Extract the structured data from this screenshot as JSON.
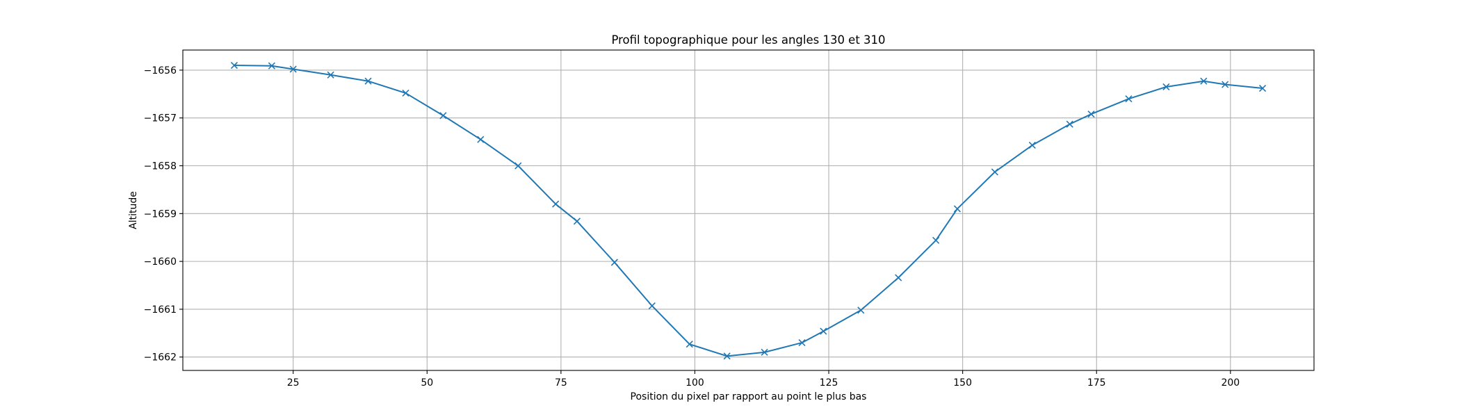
{
  "chart_data": {
    "type": "line",
    "title": "Profil topographique pour les angles 130 et 310",
    "xlabel": "Position du pixel par rapport au point le plus bas",
    "ylabel": "Altitude",
    "xlim": [
      4.4,
      215.6
    ],
    "ylim": [
      -1662.28,
      -1655.58
    ],
    "xticks": [
      25,
      50,
      75,
      100,
      125,
      150,
      175,
      200
    ],
    "yticks": [
      -1656,
      -1657,
      -1658,
      -1659,
      -1660,
      -1661,
      -1662
    ],
    "ytick_labels": [
      "−1656",
      "−1657",
      "−1658",
      "−1659",
      "−1660",
      "−1661",
      "−1662"
    ],
    "grid": true,
    "marker": "x",
    "color": "#1f77b4",
    "series": [
      {
        "x": [
          14,
          21,
          25,
          32,
          39,
          46,
          53,
          60,
          67,
          74,
          78,
          85,
          92,
          99,
          106,
          113,
          120,
          124,
          131,
          138,
          145,
          149,
          156,
          163,
          170,
          174,
          181,
          188,
          195,
          199,
          206
        ],
        "y": [
          -1655.9,
          -1655.91,
          -1655.98,
          -1656.1,
          -1656.23,
          -1656.48,
          -1656.95,
          -1657.45,
          -1658.0,
          -1658.8,
          -1659.16,
          -1660.02,
          -1660.93,
          -1661.73,
          -1661.98,
          -1661.9,
          -1661.7,
          -1661.46,
          -1661.02,
          -1660.34,
          -1659.56,
          -1658.9,
          -1658.13,
          -1657.57,
          -1657.13,
          -1656.92,
          -1656.6,
          -1656.35,
          -1656.23,
          -1656.3,
          -1656.38
        ]
      }
    ]
  }
}
